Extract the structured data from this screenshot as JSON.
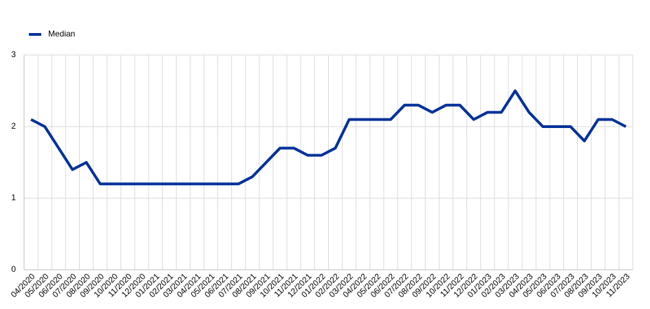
{
  "chart_data": {
    "type": "line",
    "categories": [
      "04/2020",
      "05/2020",
      "06/2020",
      "07/2020",
      "08/2020",
      "09/2020",
      "10/2020",
      "11/2020",
      "12/2020",
      "01/2021",
      "02/2021",
      "03/2021",
      "04/2021",
      "05/2021",
      "06/2021",
      "07/2021",
      "08/2021",
      "09/2021",
      "10/2021",
      "11/2021",
      "12/2021",
      "01/2022",
      "02/2022",
      "03/2022",
      "04/2022",
      "05/2022",
      "06/2022",
      "07/2022",
      "08/2022",
      "09/2022",
      "10/2022",
      "11/2022",
      "12/2022",
      "01/2023",
      "02/2023",
      "03/2023",
      "04/2023",
      "05/2023",
      "06/2023",
      "07/2023",
      "08/2023",
      "09/2023",
      "10/2023",
      "11/2023"
    ],
    "series": [
      {
        "name": "Median",
        "color": "#003299",
        "values": [
          2.1,
          2.0,
          1.7,
          1.4,
          1.5,
          1.2,
          1.2,
          1.2,
          1.2,
          1.2,
          1.2,
          1.2,
          1.2,
          1.2,
          1.2,
          1.2,
          1.3,
          1.5,
          1.7,
          1.7,
          1.6,
          1.6,
          1.7,
          2.1,
          2.1,
          2.1,
          2.1,
          2.3,
          2.3,
          2.2,
          2.3,
          2.3,
          2.1,
          2.2,
          2.2,
          2.5,
          2.2,
          2.0,
          2.0,
          2.0,
          1.8,
          2.1,
          2.1,
          2.0
        ]
      }
    ],
    "ylim": [
      0,
      3
    ],
    "yticks": [
      0,
      1,
      2,
      3
    ],
    "grid": true,
    "legend": "top-left"
  }
}
